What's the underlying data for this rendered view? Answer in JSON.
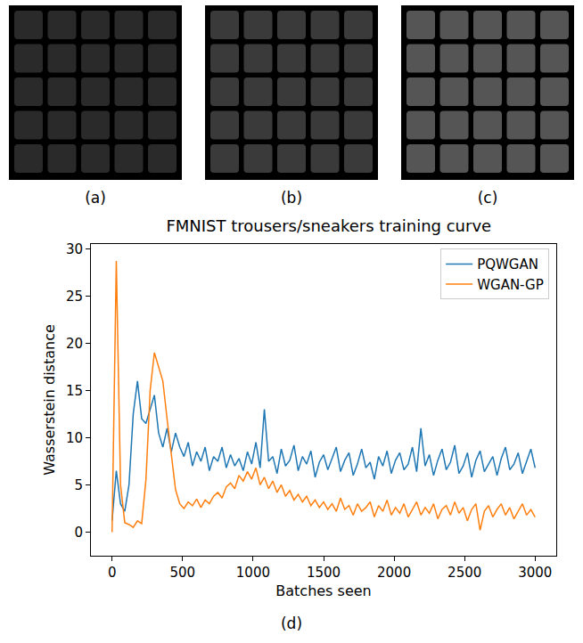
{
  "panels": [
    {
      "label": "(a)"
    },
    {
      "label": "(b)"
    },
    {
      "label": "(c)"
    }
  ],
  "chart_data": {
    "label": "(d)",
    "type": "line",
    "title": "FMNIST trousers/sneakers training curve",
    "x_label": "Batches seen",
    "y_label": "Wasserstein distance",
    "x": [
      0,
      30,
      60,
      90,
      120,
      150,
      180,
      210,
      240,
      270,
      300,
      330,
      360,
      390,
      420,
      450,
      480,
      510,
      540,
      570,
      600,
      630,
      660,
      690,
      720,
      750,
      780,
      810,
      840,
      870,
      900,
      930,
      960,
      990,
      1020,
      1050,
      1080,
      1110,
      1140,
      1170,
      1200,
      1230,
      1260,
      1290,
      1320,
      1350,
      1380,
      1410,
      1440,
      1470,
      1500,
      1530,
      1560,
      1590,
      1620,
      1650,
      1680,
      1710,
      1740,
      1770,
      1800,
      1830,
      1860,
      1890,
      1920,
      1950,
      1980,
      2010,
      2040,
      2070,
      2100,
      2130,
      2160,
      2190,
      2220,
      2250,
      2280,
      2310,
      2340,
      2370,
      2400,
      2430,
      2460,
      2490,
      2520,
      2550,
      2580,
      2610,
      2640,
      2670,
      2700,
      2730,
      2760,
      2790,
      2820,
      2850,
      2880,
      2910,
      2940,
      2970,
      3000
    ],
    "series": [
      {
        "name": "PQWGAN",
        "color": "#1f77b4",
        "values": [
          1.2,
          6.5,
          3.0,
          2.2,
          5.0,
          12.5,
          16.0,
          12.0,
          11.5,
          13.0,
          14.5,
          10.5,
          9.0,
          11.0,
          8.5,
          10.5,
          9.0,
          8.0,
          9.5,
          7.0,
          8.5,
          7.5,
          9.0,
          6.5,
          8.0,
          7.5,
          9.0,
          6.8,
          8.2,
          7.0,
          7.8,
          6.5,
          8.5,
          7.2,
          9.5,
          6.8,
          13.0,
          7.5,
          8.0,
          6.2,
          8.8,
          7.0,
          7.6,
          9.2,
          6.5,
          8.0,
          7.2,
          8.6,
          5.8,
          7.4,
          8.2,
          6.6,
          7.8,
          9.0,
          6.4,
          7.6,
          8.4,
          6.0,
          7.2,
          8.8,
          6.8,
          7.4,
          5.6,
          8.0,
          7.0,
          8.6,
          6.2,
          7.6,
          8.4,
          6.6,
          7.2,
          9.0,
          6.4,
          11.0,
          7.0,
          8.2,
          6.0,
          7.6,
          8.8,
          6.6,
          7.4,
          9.2,
          6.2,
          7.0,
          8.4,
          5.8,
          7.6,
          8.6,
          6.4,
          7.2,
          8.0,
          6.0,
          7.8,
          9.0,
          6.6,
          7.2,
          8.4,
          6.2,
          7.6,
          8.8,
          6.8
        ]
      },
      {
        "name": "WGAN-GP",
        "color": "#ff7f0e",
        "values": [
          0.0,
          28.7,
          5.0,
          1.0,
          0.8,
          0.5,
          1.2,
          0.9,
          5.5,
          15.0,
          19.0,
          17.5,
          16.0,
          12.0,
          8.0,
          4.5,
          3.0,
          2.5,
          3.2,
          2.8,
          3.5,
          2.6,
          3.4,
          3.0,
          3.8,
          4.2,
          3.6,
          4.8,
          5.2,
          4.6,
          6.0,
          5.4,
          6.4,
          5.6,
          6.8,
          5.0,
          5.8,
          4.6,
          5.4,
          4.2,
          5.0,
          3.8,
          4.4,
          3.4,
          4.0,
          3.2,
          3.8,
          2.8,
          3.4,
          2.6,
          3.2,
          2.4,
          3.0,
          2.2,
          3.6,
          2.4,
          2.8,
          1.8,
          3.0,
          2.2,
          2.6,
          3.2,
          1.6,
          2.8,
          2.2,
          3.4,
          1.8,
          2.6,
          2.0,
          3.0,
          1.6,
          2.4,
          3.2,
          1.8,
          2.6,
          2.0,
          3.0,
          1.4,
          2.4,
          2.8,
          1.8,
          3.2,
          2.0,
          2.6,
          1.2,
          2.4,
          3.0,
          0.2,
          2.2,
          2.8,
          1.6,
          2.4,
          3.0,
          1.8,
          2.6,
          1.4,
          2.2,
          3.0,
          1.8,
          2.4,
          1.6
        ]
      }
    ],
    "xlim": [
      -150,
      3150
    ],
    "ylim": [
      -2.5,
      30.5
    ],
    "xticks": [
      0,
      500,
      1000,
      1500,
      2000,
      2500,
      3000
    ],
    "yticks": [
      0,
      5,
      10,
      15,
      20,
      25,
      30
    ],
    "legend": "upper right",
    "grid": false
  }
}
